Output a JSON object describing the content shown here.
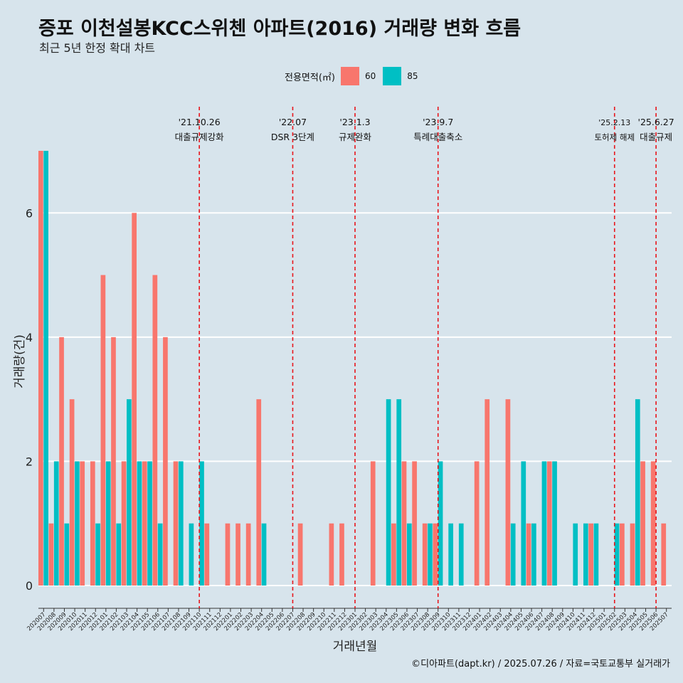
{
  "title": "증포 이천설봉KCC스위첸 아파트(2016) 거래량 변화 흐름",
  "subtitle": "최근 5년 한정 확대 차트",
  "caption": "©디아파트(dapt.kr) / 2025.07.26 / 자료=국토교통부 실거래가",
  "colors": {
    "background": "#d7e4ec",
    "series_60": "#f8766d",
    "series_85": "#00bfc4",
    "event_line": "#e8151b",
    "grid": "#ffffff"
  },
  "legend": {
    "title": "전용면적(㎡)",
    "items": [
      "60",
      "85"
    ],
    "placement": "top-center"
  },
  "chart_data": {
    "type": "bar",
    "xlabel": "거래년월",
    "ylabel": "거래량(건)",
    "ylim": [
      0,
      7
    ],
    "yticks": [
      0,
      2,
      4,
      6
    ],
    "grid": true,
    "categories": [
      "202007",
      "202008",
      "202009",
      "202010",
      "202011",
      "202012",
      "202101",
      "202102",
      "202103",
      "202104",
      "202105",
      "202106",
      "202107",
      "202108",
      "202109",
      "202110",
      "202111",
      "202112",
      "202201",
      "202202",
      "202203",
      "202204",
      "202205",
      "202206",
      "202207",
      "202208",
      "202209",
      "202210",
      "202211",
      "202212",
      "202301",
      "202302",
      "202303",
      "202304",
      "202305",
      "202306",
      "202307",
      "202308",
      "202309",
      "202310",
      "202311",
      "202312",
      "202401",
      "202402",
      "202403",
      "202404",
      "202405",
      "202406",
      "202407",
      "202408",
      "202409",
      "202410",
      "202411",
      "202412",
      "202501",
      "202502",
      "202503",
      "202504",
      "202505",
      "202506",
      "202507"
    ],
    "series": [
      {
        "name": "60",
        "values": [
          7,
          1,
          4,
          3,
          2,
          2,
          5,
          4,
          2,
          6,
          2,
          5,
          4,
          2,
          0,
          0,
          1,
          0,
          1,
          1,
          1,
          3,
          0,
          0,
          0,
          1,
          0,
          0,
          1,
          1,
          0,
          0,
          2,
          0,
          1,
          2,
          2,
          1,
          1,
          0,
          0,
          0,
          2,
          3,
          0,
          3,
          0,
          1,
          0,
          2,
          0,
          0,
          0,
          1,
          0,
          0,
          1,
          1,
          2,
          2,
          1
        ]
      },
      {
        "name": "85",
        "values": [
          7,
          2,
          1,
          2,
          0,
          1,
          2,
          1,
          3,
          2,
          2,
          1,
          0,
          2,
          1,
          2,
          0,
          0,
          0,
          0,
          0,
          1,
          0,
          0,
          0,
          0,
          0,
          0,
          0,
          0,
          0,
          0,
          0,
          3,
          3,
          1,
          0,
          1,
          2,
          1,
          1,
          0,
          0,
          0,
          0,
          1,
          2,
          1,
          2,
          2,
          0,
          1,
          1,
          1,
          0,
          1,
          0,
          3,
          0,
          0,
          0
        ]
      }
    ],
    "events": [
      {
        "category": "202110",
        "date": "'21.10.26",
        "label": "대출규제강화"
      },
      {
        "category": "202207",
        "date": "'22.07",
        "label": "DSR 3단계"
      },
      {
        "category": "202301",
        "date": "'23.1.3",
        "label": "규제완화"
      },
      {
        "category": "202309",
        "date": "'23.9.7",
        "label": "특례대출축소"
      },
      {
        "category": "202502",
        "date": "'25.2.13",
        "label": "토허제 해제"
      },
      {
        "category": "202506",
        "date": "'25.6.27",
        "label": "대출규제"
      }
    ]
  }
}
